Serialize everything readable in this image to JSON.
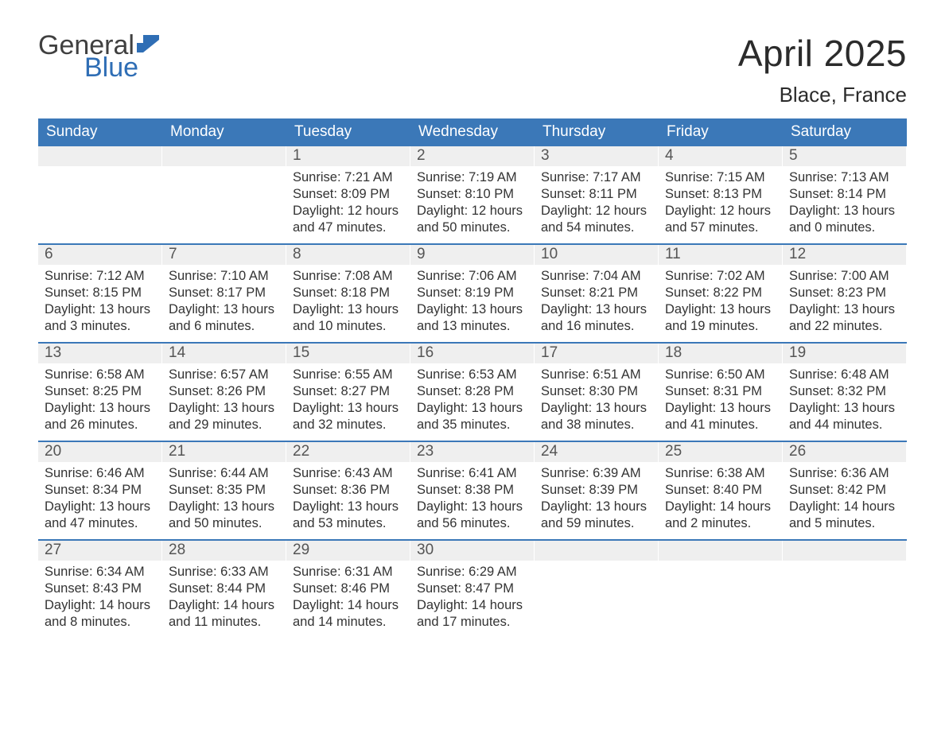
{
  "logo": {
    "word1": "General",
    "word2": "Blue",
    "flag_color": "#2f6eb5"
  },
  "title": {
    "month": "April 2025",
    "location": "Blace, France"
  },
  "colors": {
    "header_bg": "#3b78b8",
    "header_text": "#ffffff",
    "daynum_bg": "#efefef",
    "daynum_text": "#555555",
    "body_text": "#333333",
    "week_divider": "#3b78b8",
    "page_bg": "#ffffff"
  },
  "weekdays": [
    "Sunday",
    "Monday",
    "Tuesday",
    "Wednesday",
    "Thursday",
    "Friday",
    "Saturday"
  ],
  "weeks": [
    [
      {
        "day": "",
        "sunrise": "",
        "sunset": "",
        "daylight1": "",
        "daylight2": ""
      },
      {
        "day": "",
        "sunrise": "",
        "sunset": "",
        "daylight1": "",
        "daylight2": ""
      },
      {
        "day": "1",
        "sunrise": "Sunrise: 7:21 AM",
        "sunset": "Sunset: 8:09 PM",
        "daylight1": "Daylight: 12 hours",
        "daylight2": "and 47 minutes."
      },
      {
        "day": "2",
        "sunrise": "Sunrise: 7:19 AM",
        "sunset": "Sunset: 8:10 PM",
        "daylight1": "Daylight: 12 hours",
        "daylight2": "and 50 minutes."
      },
      {
        "day": "3",
        "sunrise": "Sunrise: 7:17 AM",
        "sunset": "Sunset: 8:11 PM",
        "daylight1": "Daylight: 12 hours",
        "daylight2": "and 54 minutes."
      },
      {
        "day": "4",
        "sunrise": "Sunrise: 7:15 AM",
        "sunset": "Sunset: 8:13 PM",
        "daylight1": "Daylight: 12 hours",
        "daylight2": "and 57 minutes."
      },
      {
        "day": "5",
        "sunrise": "Sunrise: 7:13 AM",
        "sunset": "Sunset: 8:14 PM",
        "daylight1": "Daylight: 13 hours",
        "daylight2": "and 0 minutes."
      }
    ],
    [
      {
        "day": "6",
        "sunrise": "Sunrise: 7:12 AM",
        "sunset": "Sunset: 8:15 PM",
        "daylight1": "Daylight: 13 hours",
        "daylight2": "and 3 minutes."
      },
      {
        "day": "7",
        "sunrise": "Sunrise: 7:10 AM",
        "sunset": "Sunset: 8:17 PM",
        "daylight1": "Daylight: 13 hours",
        "daylight2": "and 6 minutes."
      },
      {
        "day": "8",
        "sunrise": "Sunrise: 7:08 AM",
        "sunset": "Sunset: 8:18 PM",
        "daylight1": "Daylight: 13 hours",
        "daylight2": "and 10 minutes."
      },
      {
        "day": "9",
        "sunrise": "Sunrise: 7:06 AM",
        "sunset": "Sunset: 8:19 PM",
        "daylight1": "Daylight: 13 hours",
        "daylight2": "and 13 minutes."
      },
      {
        "day": "10",
        "sunrise": "Sunrise: 7:04 AM",
        "sunset": "Sunset: 8:21 PM",
        "daylight1": "Daylight: 13 hours",
        "daylight2": "and 16 minutes."
      },
      {
        "day": "11",
        "sunrise": "Sunrise: 7:02 AM",
        "sunset": "Sunset: 8:22 PM",
        "daylight1": "Daylight: 13 hours",
        "daylight2": "and 19 minutes."
      },
      {
        "day": "12",
        "sunrise": "Sunrise: 7:00 AM",
        "sunset": "Sunset: 8:23 PM",
        "daylight1": "Daylight: 13 hours",
        "daylight2": "and 22 minutes."
      }
    ],
    [
      {
        "day": "13",
        "sunrise": "Sunrise: 6:58 AM",
        "sunset": "Sunset: 8:25 PM",
        "daylight1": "Daylight: 13 hours",
        "daylight2": "and 26 minutes."
      },
      {
        "day": "14",
        "sunrise": "Sunrise: 6:57 AM",
        "sunset": "Sunset: 8:26 PM",
        "daylight1": "Daylight: 13 hours",
        "daylight2": "and 29 minutes."
      },
      {
        "day": "15",
        "sunrise": "Sunrise: 6:55 AM",
        "sunset": "Sunset: 8:27 PM",
        "daylight1": "Daylight: 13 hours",
        "daylight2": "and 32 minutes."
      },
      {
        "day": "16",
        "sunrise": "Sunrise: 6:53 AM",
        "sunset": "Sunset: 8:28 PM",
        "daylight1": "Daylight: 13 hours",
        "daylight2": "and 35 minutes."
      },
      {
        "day": "17",
        "sunrise": "Sunrise: 6:51 AM",
        "sunset": "Sunset: 8:30 PM",
        "daylight1": "Daylight: 13 hours",
        "daylight2": "and 38 minutes."
      },
      {
        "day": "18",
        "sunrise": "Sunrise: 6:50 AM",
        "sunset": "Sunset: 8:31 PM",
        "daylight1": "Daylight: 13 hours",
        "daylight2": "and 41 minutes."
      },
      {
        "day": "19",
        "sunrise": "Sunrise: 6:48 AM",
        "sunset": "Sunset: 8:32 PM",
        "daylight1": "Daylight: 13 hours",
        "daylight2": "and 44 minutes."
      }
    ],
    [
      {
        "day": "20",
        "sunrise": "Sunrise: 6:46 AM",
        "sunset": "Sunset: 8:34 PM",
        "daylight1": "Daylight: 13 hours",
        "daylight2": "and 47 minutes."
      },
      {
        "day": "21",
        "sunrise": "Sunrise: 6:44 AM",
        "sunset": "Sunset: 8:35 PM",
        "daylight1": "Daylight: 13 hours",
        "daylight2": "and 50 minutes."
      },
      {
        "day": "22",
        "sunrise": "Sunrise: 6:43 AM",
        "sunset": "Sunset: 8:36 PM",
        "daylight1": "Daylight: 13 hours",
        "daylight2": "and 53 minutes."
      },
      {
        "day": "23",
        "sunrise": "Sunrise: 6:41 AM",
        "sunset": "Sunset: 8:38 PM",
        "daylight1": "Daylight: 13 hours",
        "daylight2": "and 56 minutes."
      },
      {
        "day": "24",
        "sunrise": "Sunrise: 6:39 AM",
        "sunset": "Sunset: 8:39 PM",
        "daylight1": "Daylight: 13 hours",
        "daylight2": "and 59 minutes."
      },
      {
        "day": "25",
        "sunrise": "Sunrise: 6:38 AM",
        "sunset": "Sunset: 8:40 PM",
        "daylight1": "Daylight: 14 hours",
        "daylight2": "and 2 minutes."
      },
      {
        "day": "26",
        "sunrise": "Sunrise: 6:36 AM",
        "sunset": "Sunset: 8:42 PM",
        "daylight1": "Daylight: 14 hours",
        "daylight2": "and 5 minutes."
      }
    ],
    [
      {
        "day": "27",
        "sunrise": "Sunrise: 6:34 AM",
        "sunset": "Sunset: 8:43 PM",
        "daylight1": "Daylight: 14 hours",
        "daylight2": "and 8 minutes."
      },
      {
        "day": "28",
        "sunrise": "Sunrise: 6:33 AM",
        "sunset": "Sunset: 8:44 PM",
        "daylight1": "Daylight: 14 hours",
        "daylight2": "and 11 minutes."
      },
      {
        "day": "29",
        "sunrise": "Sunrise: 6:31 AM",
        "sunset": "Sunset: 8:46 PM",
        "daylight1": "Daylight: 14 hours",
        "daylight2": "and 14 minutes."
      },
      {
        "day": "30",
        "sunrise": "Sunrise: 6:29 AM",
        "sunset": "Sunset: 8:47 PM",
        "daylight1": "Daylight: 14 hours",
        "daylight2": "and 17 minutes."
      },
      {
        "day": "",
        "sunrise": "",
        "sunset": "",
        "daylight1": "",
        "daylight2": ""
      },
      {
        "day": "",
        "sunrise": "",
        "sunset": "",
        "daylight1": "",
        "daylight2": ""
      },
      {
        "day": "",
        "sunrise": "",
        "sunset": "",
        "daylight1": "",
        "daylight2": ""
      }
    ]
  ]
}
